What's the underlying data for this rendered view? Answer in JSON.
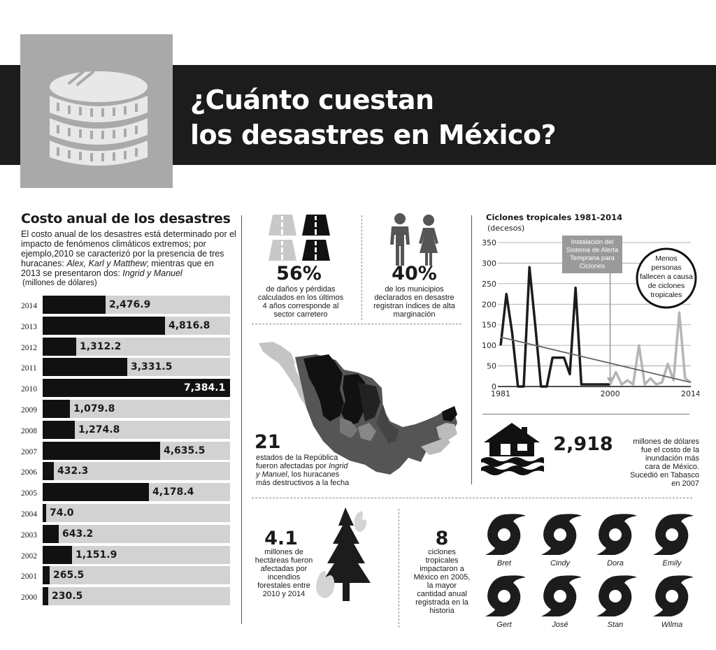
{
  "header": {
    "title_line1": "¿Cuánto cuestan",
    "title_line2": "los desastres en México?"
  },
  "costs": {
    "title": "Costo anual de los desastres",
    "desc_line1": "El costo anual de los desastres está determinado por el",
    "desc_line2": "impacto de fenómenos climáticos extremos; por",
    "desc_line3": "ejemplo,2010 se caracterizó por la presencia de tres",
    "desc_line4_a": "huracanes: ",
    "desc_line4_b": "Alex, Karl y Matthew",
    "desc_line4_c": "; mientras que en",
    "desc_line5_a": "2013 se presentaron dos: ",
    "desc_line5_b": "Ingrid y Manuel",
    "unit": "(millones de dólares)"
  },
  "roads": {
    "value": "56%",
    "text": [
      "de daños y pérdidas",
      "calculados en los últimos",
      "4 años corresponde al",
      "sector carretero"
    ]
  },
  "municipios": {
    "value": "40%",
    "text": [
      "de los municipios",
      "declarados en desastre",
      "registran índices de alta",
      "marginación"
    ]
  },
  "map": {
    "value": "21",
    "text1": "estados de la República",
    "text2_a": "fueron afectadas por ",
    "text2_b": "Ingrid",
    "text3_a": "y Manuel",
    "text3_b": ", los huracanes",
    "text4": "más destructivos a la fecha"
  },
  "flood": {
    "value": "2,918",
    "text": [
      "millones de dólares",
      "fue el costo de la",
      "inundación más",
      "cara de México.",
      "Sucedió en Tabasco",
      "en 2007"
    ]
  },
  "fires": {
    "value": "4.1",
    "text": [
      "millones de",
      "hectáreas fueron",
      "afectadas por",
      "incendios",
      "forestales entre",
      "2010 y 2014"
    ]
  },
  "cyclones2005": {
    "value": "8",
    "text": [
      "ciclones",
      "tropicales",
      "impactaron a",
      "México en 2005,",
      "la mayor",
      "cantidad anual",
      "registrada en la",
      "historia"
    ],
    "names": [
      "Bret",
      "Cindy",
      "Dora",
      "Emily",
      "Gert",
      "José",
      "Stan",
      "Wilma"
    ]
  },
  "colors": {
    "dark": "#1c1c1c",
    "gray": "#a9a9a9",
    "light_gray": "#d2d2d2",
    "line_gray": "#b5b5b5"
  },
  "chart_data": [
    {
      "type": "bar",
      "orientation": "horizontal",
      "categories": [
        "2014",
        "2013",
        "2012",
        "2011",
        "2010",
        "2009",
        "2008",
        "2007",
        "2006",
        "2005",
        "2004",
        "2003",
        "2002",
        "2001",
        "2000"
      ],
      "values": [
        2476.9,
        4816.8,
        1312.2,
        3331.5,
        7384.1,
        1079.8,
        1274.8,
        4635.5,
        432.3,
        4178.4,
        74.0,
        643.2,
        1151.9,
        265.5,
        230.5
      ],
      "labels": [
        "2,476.9",
        "4,816.8",
        "1,312.2",
        "3,331.5",
        "7,384.1",
        "1,079.8",
        "1,274.8",
        "4,635.5",
        "432.3",
        "4,178.4",
        "74.0",
        "643.2",
        "1,151.9",
        "265.5",
        "230.5"
      ],
      "xlim": [
        0,
        7384.1
      ]
    },
    {
      "type": "line",
      "title": "Ciclones tropicales 1981-2014",
      "ylabel": "(decesos)",
      "xlim": [
        1981,
        2014
      ],
      "ylim": [
        0,
        350
      ],
      "yticks": [
        0,
        50,
        100,
        150,
        200,
        250,
        300,
        350
      ],
      "xticks": [
        "1981",
        "2000",
        "2014"
      ],
      "series": [
        {
          "x": [
            1981,
            1982,
            1983,
            1984,
            1985,
            1986,
            1987,
            1988,
            1989,
            1990,
            1991,
            1992,
            1993,
            1994,
            1995,
            1996,
            1997,
            1998,
            1999,
            2000
          ],
          "values": [
            100,
            225,
            130,
            0,
            0,
            290,
            150,
            0,
            0,
            70,
            70,
            70,
            30,
            240,
            5,
            5,
            5,
            5,
            5,
            5
          ],
          "color": "#1c1c1c"
        },
        {
          "x": [
            2000,
            2001,
            2002,
            2003,
            2004,
            2005,
            2006,
            2007,
            2008,
            2009,
            2010,
            2011,
            2012,
            2013,
            2014
          ],
          "values": [
            5,
            35,
            5,
            15,
            5,
            100,
            5,
            20,
            5,
            10,
            55,
            15,
            180,
            20,
            10
          ],
          "color": "#b5b5b5"
        },
        {
          "x": [
            1981,
            2014
          ],
          "values": [
            120,
            10
          ],
          "color": "#666666",
          "trend": true
        }
      ],
      "annotations": [
        {
          "text": [
            "Instalación del",
            "Sistema de Alerta",
            "Temprana para",
            "Ciclones"
          ],
          "x": 2000
        },
        {
          "text": [
            "Menos",
            "personas",
            "fallecen a causa",
            "de ciclones",
            "tropicales"
          ]
        }
      ]
    }
  ]
}
